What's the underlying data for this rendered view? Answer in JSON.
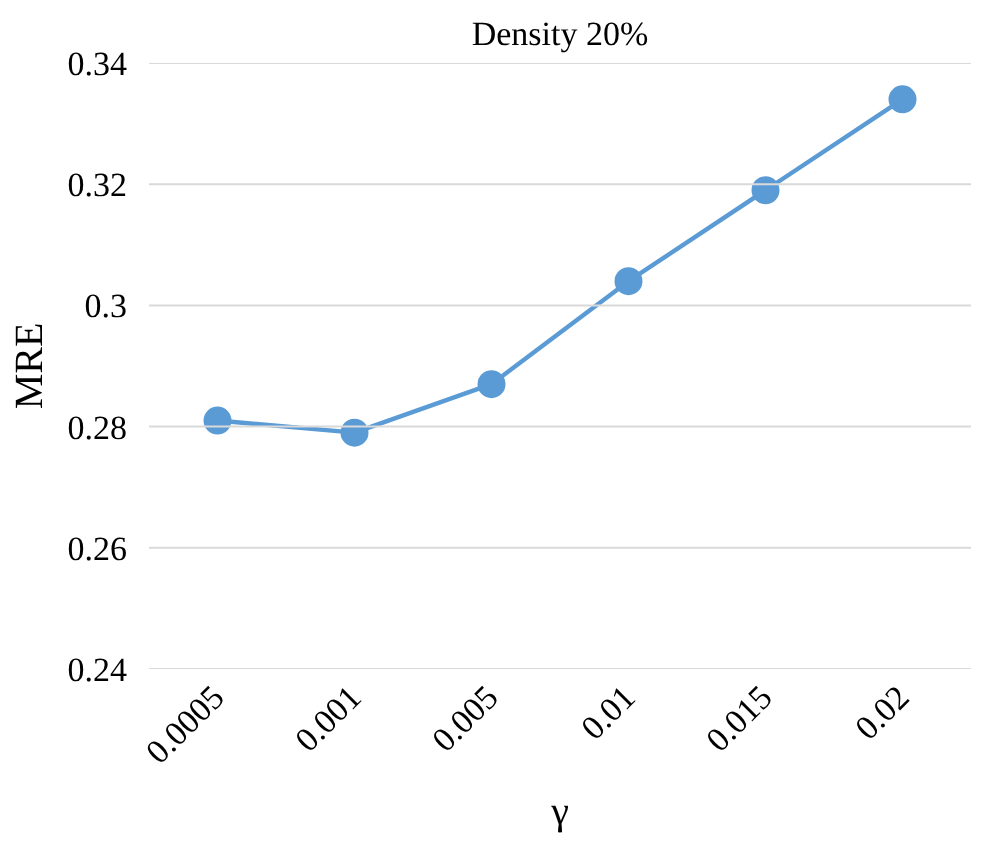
{
  "chart_data": {
    "type": "line",
    "title": "Density 20%",
    "xlabel": "γ",
    "ylabel": "MRE",
    "categories": [
      "0.0005",
      "0.001",
      "0.005",
      "0.01",
      "0.015",
      "0.02"
    ],
    "series": [
      {
        "color": "#5b9bd5",
        "values": [
          0.281,
          0.279,
          0.287,
          0.304,
          0.319,
          0.334
        ]
      }
    ],
    "ylim": [
      0.24,
      0.34
    ],
    "yticks": [
      0.24,
      0.26,
      0.28,
      "0.3",
      0.32,
      0.34
    ],
    "grid": "y",
    "marker": "circle",
    "line_style": "solid"
  }
}
